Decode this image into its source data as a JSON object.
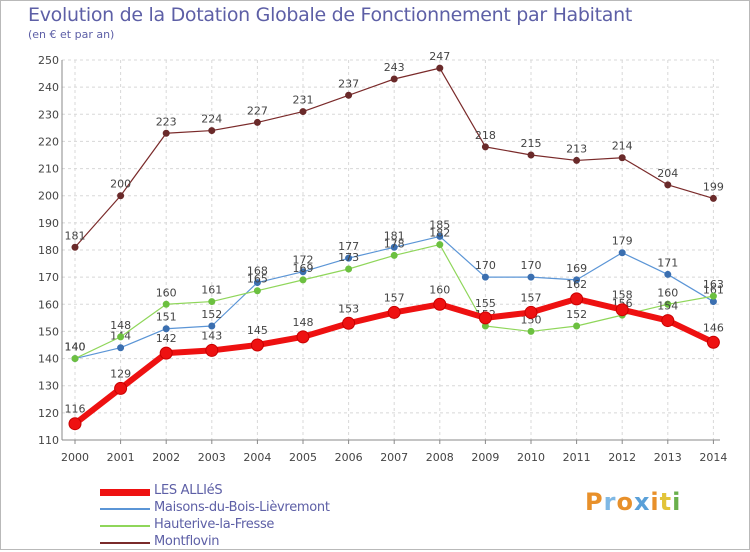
{
  "title": "Evolution de la Dotation Globale de Fonctionnement par Habitant",
  "subtitle": "(en € et par an)",
  "brand": {
    "letters": [
      "P",
      "r",
      "o",
      "x",
      "i",
      "t",
      "i"
    ],
    "colors": [
      "#e8902a",
      "#7fb8e4",
      "#e8902a",
      "#5aa0d8",
      "#e8902a",
      "#e2c43a",
      "#6ab04c"
    ]
  },
  "chart_data": {
    "type": "line",
    "title": "Evolution de la Dotation Globale de Fonctionnement par Habitant",
    "subtitle": "(en € et par an)",
    "xlabel": "",
    "ylabel": "",
    "ylim": [
      110,
      250
    ],
    "yticks": [
      110,
      120,
      130,
      140,
      150,
      160,
      170,
      180,
      190,
      200,
      210,
      220,
      230,
      240,
      250
    ],
    "x": [
      2000,
      2001,
      2002,
      2003,
      2004,
      2005,
      2006,
      2007,
      2008,
      2009,
      2010,
      2011,
      2012,
      2013,
      2014
    ],
    "legend_position": "bottom-left",
    "series": [
      {
        "name": "Montflovin",
        "color": "#7a2a2a",
        "values": [
          181,
          200,
          223,
          224,
          227,
          231,
          237,
          243,
          247,
          218,
          215,
          213,
          214,
          204,
          199
        ],
        "labels": [
          "181",
          "200",
          "223",
          "224",
          "227",
          "231",
          "237",
          "243",
          "247",
          "218",
          "215",
          "213",
          "214",
          "204",
          "199"
        ]
      },
      {
        "name": "Maisons-du-Bois-Lièvremont",
        "color": "#5b95d6",
        "values": [
          140,
          144,
          151,
          152,
          168,
          172,
          177,
          181,
          185,
          170,
          170,
          169,
          179,
          171,
          161
        ],
        "labels": [
          "140",
          "144",
          "151",
          "152",
          "168",
          "172",
          "177",
          "181",
          "185",
          "170",
          "170",
          "169",
          "179",
          "171",
          "161"
        ]
      },
      {
        "name": "Hauterive-la-Fresse",
        "color": "#8fd65a",
        "values": [
          140,
          148,
          160,
          161,
          165,
          169,
          173,
          178,
          182,
          152,
          150,
          152,
          156,
          160,
          163
        ],
        "labels": [
          "140",
          "148",
          "160",
          "161",
          "165",
          "169",
          "173",
          "178",
          "182",
          "152",
          "150",
          "152",
          "156",
          "160",
          "163"
        ]
      },
      {
        "name": "LES ALLIéS",
        "color": "#ee1111",
        "values": [
          116,
          129,
          142,
          143,
          145,
          148,
          153,
          157,
          160,
          155,
          157,
          162,
          158,
          154,
          146
        ],
        "labels": [
          "116",
          "129",
          "142",
          "143",
          "145",
          "148",
          "153",
          "157",
          "160",
          "155",
          "157",
          "162",
          "158",
          "154",
          "146"
        ]
      }
    ]
  }
}
